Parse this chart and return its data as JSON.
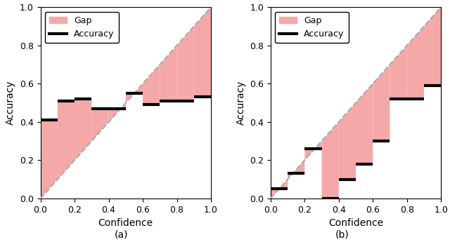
{
  "chart_a": {
    "bin_edges": [
      0.0,
      0.1,
      0.2,
      0.3,
      0.4,
      0.5,
      0.6,
      0.7,
      0.8,
      0.9,
      1.0
    ],
    "accuracy": [
      0.41,
      0.51,
      0.52,
      0.47,
      0.47,
      0.55,
      0.49,
      0.51,
      0.51,
      0.53
    ]
  },
  "chart_b": {
    "bin_edges": [
      0.0,
      0.1,
      0.2,
      0.3,
      0.4,
      0.5,
      0.6,
      0.7,
      0.8,
      0.9,
      1.0
    ],
    "accuracy": [
      0.05,
      0.13,
      0.26,
      0.0,
      0.1,
      0.18,
      0.3,
      0.52,
      0.52,
      0.59
    ]
  },
  "gap_color": "#f4a9a8",
  "diag_color": "#aaaaaa",
  "diag_linestyle": "--",
  "acc_line_color": "black",
  "acc_linewidth": 3.0,
  "xlabel": "Confidence",
  "ylabel": "Accuracy",
  "xlim": [
    0.0,
    1.0
  ],
  "ylim": [
    0.0,
    1.0
  ],
  "xticks": [
    0.0,
    0.2,
    0.4,
    0.6,
    0.8,
    1.0
  ],
  "yticks": [
    0.0,
    0.2,
    0.4,
    0.6,
    0.8,
    1.0
  ],
  "label_a": "(a)",
  "label_b": "(b)",
  "legend_fontsize": 9,
  "tick_fontsize": 9,
  "axis_fontsize": 10,
  "sublabel_fontsize": 10
}
